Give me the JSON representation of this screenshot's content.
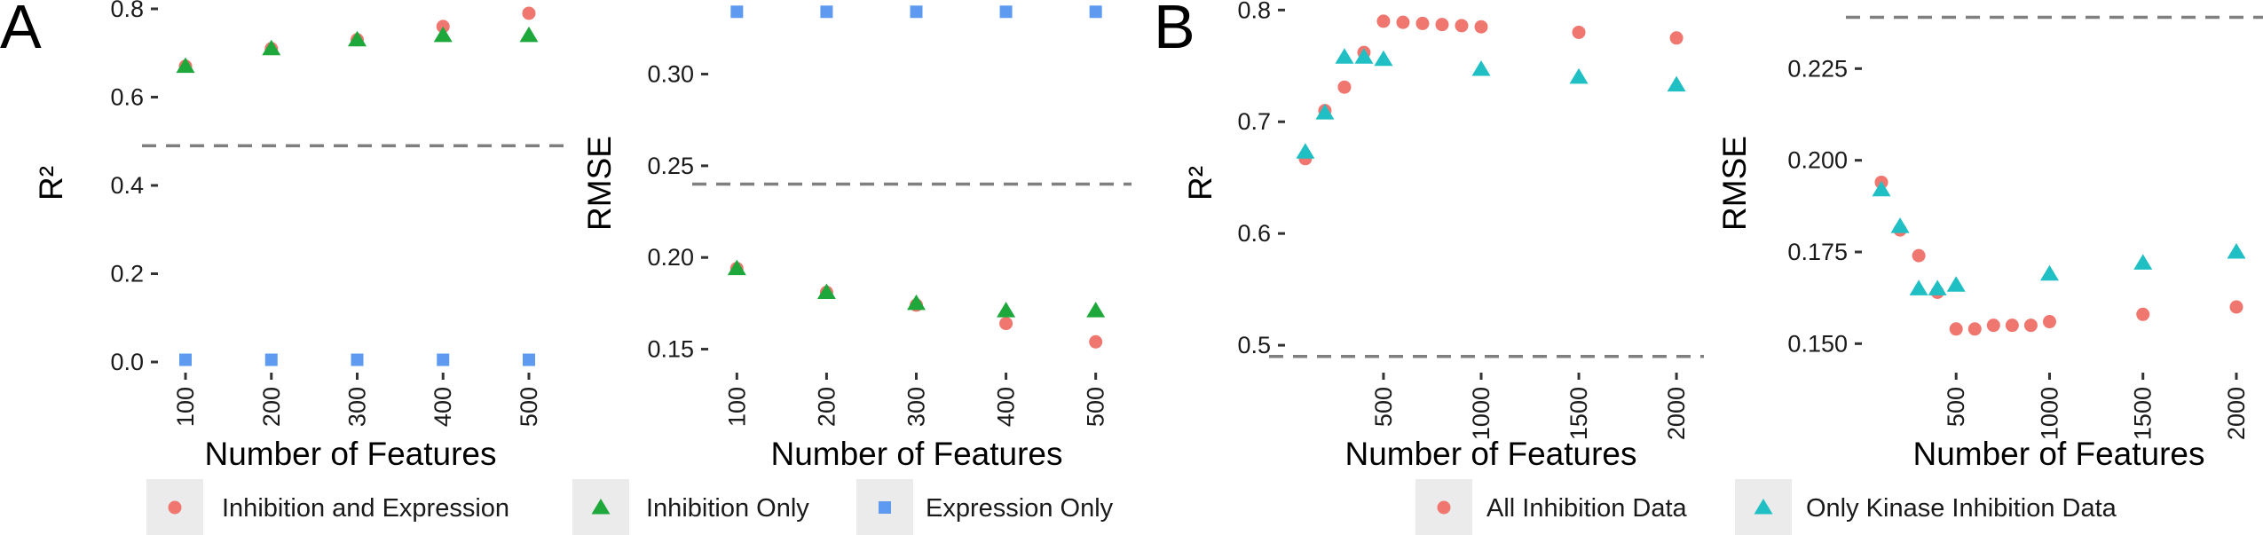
{
  "figure": {
    "panel_letters": [
      "A",
      "B"
    ]
  },
  "colors": {
    "inhibition_and_expression": "#F07670",
    "inhibition_only": "#1EA83C",
    "expression_only": "#5E9BF0",
    "all_inhibition": "#F07670",
    "only_kinase": "#1FBFC4",
    "reference_line": "#7f7f7f",
    "legend_key_bg": "#ebebeb"
  },
  "legends": [
    {
      "panel": "A",
      "items": [
        {
          "label": "Inhibition and Expression",
          "shape": "circle",
          "color": "#F07670"
        },
        {
          "label": "Inhibition Only",
          "shape": "triangle",
          "color": "#1EA83C"
        },
        {
          "label": "Expression Only",
          "shape": "square",
          "color": "#5E9BF0"
        }
      ]
    },
    {
      "panel": "B",
      "items": [
        {
          "label": "All Inhibition Data",
          "shape": "circle",
          "color": "#F07670"
        },
        {
          "label": "Only Kinase Inhibition Data",
          "shape": "triangle",
          "color": "#1FBFC4"
        }
      ]
    }
  ],
  "chart_data": [
    {
      "id": "A-r2",
      "panel": "A",
      "type": "scatter",
      "xlabel": "Number of Features",
      "ylabel": "R²",
      "x_ticks": [
        100,
        200,
        300,
        400,
        500
      ],
      "x_tick_labels": [
        "100",
        "200",
        "300",
        "400",
        "500"
      ],
      "y_ticks": [
        0.0,
        0.2,
        0.4,
        0.6,
        0.8
      ],
      "y_tick_labels": [
        "0.0",
        "0.2",
        "0.4",
        "0.6",
        "0.8"
      ],
      "xlim": [
        70,
        530
      ],
      "ylim": [
        0.0,
        0.81
      ],
      "reference_line": 0.49,
      "series": [
        {
          "name": "Inhibition and Expression",
          "shape": "circle",
          "color": "#F07670",
          "x": [
            100,
            200,
            300,
            400,
            500
          ],
          "y": [
            0.67,
            0.71,
            0.73,
            0.76,
            0.79
          ]
        },
        {
          "name": "Inhibition Only",
          "shape": "triangle",
          "color": "#1EA83C",
          "x": [
            100,
            200,
            300,
            400,
            500
          ],
          "y": [
            0.67,
            0.71,
            0.73,
            0.74,
            0.74
          ]
        },
        {
          "name": "Expression Only",
          "shape": "square",
          "color": "#5E9BF0",
          "x": [
            100,
            200,
            300,
            400,
            500
          ],
          "y": [
            0.005,
            0.005,
            0.005,
            0.005,
            0.005
          ]
        }
      ]
    },
    {
      "id": "A-rmse",
      "panel": "A",
      "type": "scatter",
      "xlabel": "Number of Features",
      "ylabel": "RMSE",
      "x_ticks": [
        100,
        200,
        300,
        400,
        500
      ],
      "x_tick_labels": [
        "100",
        "200",
        "300",
        "400",
        "500"
      ],
      "y_ticks": [
        0.15,
        0.2,
        0.25,
        0.3
      ],
      "y_tick_labels": [
        "0.15",
        "0.20",
        "0.25",
        "0.30"
      ],
      "xlim": [
        70,
        530
      ],
      "ylim": [
        0.143,
        0.338
      ],
      "reference_line": 0.24,
      "series": [
        {
          "name": "Inhibition and Expression",
          "shape": "circle",
          "color": "#F07670",
          "x": [
            100,
            200,
            300,
            400,
            500
          ],
          "y": [
            0.194,
            0.181,
            0.174,
            0.164,
            0.154
          ]
        },
        {
          "name": "Inhibition Only",
          "shape": "triangle",
          "color": "#1EA83C",
          "x": [
            100,
            200,
            300,
            400,
            500
          ],
          "y": [
            0.194,
            0.181,
            0.175,
            0.171,
            0.171
          ]
        },
        {
          "name": "Expression Only",
          "shape": "square",
          "color": "#5E9BF0",
          "x": [
            100,
            200,
            300,
            400,
            500
          ],
          "y": [
            0.334,
            0.334,
            0.334,
            0.334,
            0.334
          ]
        }
      ]
    },
    {
      "id": "B-r2",
      "panel": "B",
      "type": "scatter",
      "xlabel": "Number of Features",
      "ylabel": "R²",
      "x_ticks": [
        500,
        1000,
        1500,
        2000
      ],
      "x_tick_labels": [
        "500",
        "1000",
        "1500",
        "2000"
      ],
      "y_ticks": [
        0.5,
        0.6,
        0.7,
        0.8
      ],
      "y_tick_labels": [
        "0.5",
        "0.6",
        "0.7",
        "0.8"
      ],
      "xlim": [
        5,
        2095
      ],
      "ylim": [
        0.485,
        0.805
      ],
      "reference_line": 0.49,
      "series": [
        {
          "name": "All Inhibition Data",
          "shape": "circle",
          "color": "#F07670",
          "x": [
            100,
            200,
            300,
            400,
            500,
            600,
            700,
            800,
            900,
            1000,
            1500,
            2000
          ],
          "y": [
            0.667,
            0.71,
            0.731,
            0.762,
            0.79,
            0.789,
            0.788,
            0.787,
            0.786,
            0.785,
            0.78,
            0.775
          ]
        },
        {
          "name": "Only Kinase Inhibition Data",
          "shape": "triangle",
          "color": "#1FBFC4",
          "x": [
            100,
            200,
            300,
            400,
            500,
            1000,
            1500,
            2000
          ],
          "y": [
            0.673,
            0.708,
            0.758,
            0.758,
            0.756,
            0.747,
            0.74,
            0.733
          ]
        }
      ]
    },
    {
      "id": "B-rmse",
      "panel": "B",
      "type": "scatter",
      "xlabel": "Number of Features",
      "ylabel": "RMSE",
      "x_ticks": [
        500,
        1000,
        1500,
        2000
      ],
      "x_tick_labels": [
        "500",
        "1000",
        "1500",
        "2000"
      ],
      "y_ticks": [
        0.15,
        0.175,
        0.2,
        0.225
      ],
      "y_tick_labels": [
        "0.150",
        "0.175",
        "0.200",
        "0.225"
      ],
      "xlim": [
        5,
        2095
      ],
      "ylim": [
        0.145,
        0.2425
      ],
      "reference_line": 0.239,
      "series": [
        {
          "name": "All Inhibition Data",
          "shape": "circle",
          "color": "#F07670",
          "x": [
            100,
            200,
            300,
            400,
            500,
            600,
            700,
            800,
            900,
            1000,
            1500,
            2000
          ],
          "y": [
            0.194,
            0.181,
            0.174,
            0.164,
            0.154,
            0.154,
            0.155,
            0.155,
            0.155,
            0.156,
            0.158,
            0.16
          ]
        },
        {
          "name": "Only Kinase Inhibition Data",
          "shape": "triangle",
          "color": "#1FBFC4",
          "x": [
            100,
            200,
            300,
            400,
            500,
            1000,
            1500,
            2000
          ],
          "y": [
            0.192,
            0.182,
            0.165,
            0.165,
            0.166,
            0.169,
            0.172,
            0.175
          ]
        }
      ]
    }
  ]
}
